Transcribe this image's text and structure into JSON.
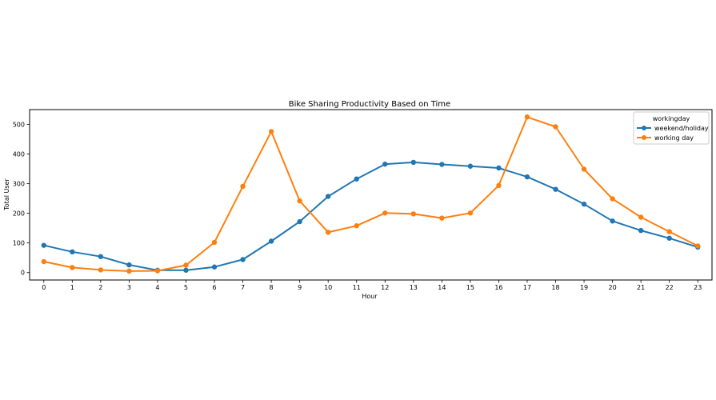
{
  "chart_data": {
    "type": "line",
    "title": "Bike Sharing Productivity Based on Time",
    "xlabel": "Hour",
    "ylabel": "Total User",
    "x": [
      0,
      1,
      2,
      3,
      4,
      5,
      6,
      7,
      8,
      9,
      10,
      11,
      12,
      13,
      14,
      15,
      16,
      17,
      18,
      19,
      20,
      21,
      22,
      23
    ],
    "xlim": [
      -0.5,
      23.5
    ],
    "ylim": [
      -25,
      550
    ],
    "yticks": [
      0,
      100,
      200,
      300,
      400,
      500
    ],
    "grid": false,
    "legend": {
      "title": "workingday",
      "placement": "top-right"
    },
    "series": [
      {
        "name": "weekend/holiday",
        "color": "#1f77b4",
        "marker": "circle",
        "values": [
          92,
          70,
          54,
          26,
          8,
          8,
          19,
          44,
          106,
          172,
          257,
          316,
          366,
          372,
          365,
          359,
          353,
          323,
          281,
          231,
          174,
          142,
          116,
          86
        ]
      },
      {
        "name": "working day",
        "color": "#ff7f0e",
        "marker": "circle",
        "values": [
          37,
          17,
          9,
          5,
          6,
          25,
          102,
          291,
          476,
          242,
          136,
          158,
          201,
          198,
          184,
          201,
          294,
          525,
          492,
          349,
          249,
          187,
          138,
          90
        ]
      }
    ]
  }
}
